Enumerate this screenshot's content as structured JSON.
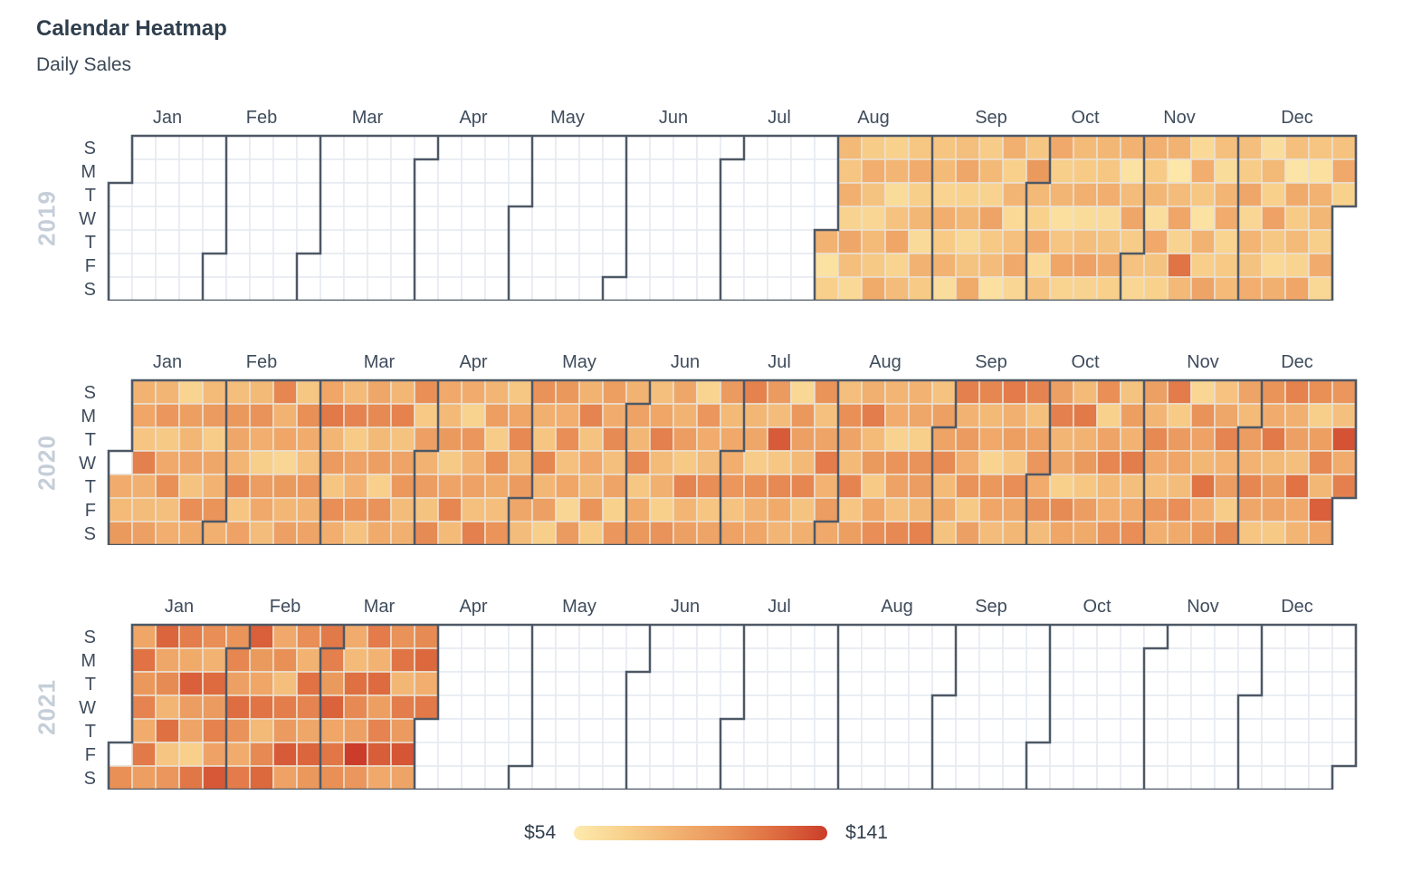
{
  "title": "Calendar Heatmap",
  "subtitle": "Daily Sales",
  "legend": {
    "min_label": "$54",
    "max_label": "$141"
  },
  "colors": {
    "title_text": "#2f3e4d",
    "subtitle_text": "#3a4755",
    "axis_text": "#3f4c5c",
    "year_label": "#c5ced8",
    "border": "#4d5866",
    "grid_empty": "#e6eaf1",
    "grid_filled": "#ebdfd0",
    "missing_cell": "#ffffff",
    "colormap": [
      "#fdeaae",
      "#f8d18c",
      "#f2b271",
      "#ea945a",
      "#de6c40",
      "#cb3d2a"
    ]
  },
  "chart_data": {
    "type": "heatmap",
    "subtype": "calendar",
    "title": "Calendar Heatmap",
    "subtitle": "Daily Sales",
    "value_unit": "$",
    "value_range": [
      54,
      141
    ],
    "legend": {
      "min": "$54",
      "max": "$141",
      "position": "bottom-center"
    },
    "data_start": "2019-08-01",
    "data_end": "2021-03-31",
    "day_labels": [
      "S",
      "M",
      "T",
      "W",
      "T",
      "F",
      "S"
    ],
    "month_labels": [
      "Jan",
      "Feb",
      "Mar",
      "Apr",
      "May",
      "Jun",
      "Jul",
      "Aug",
      "Sep",
      "Oct",
      "Nov",
      "Dec"
    ],
    "years": [
      {
        "year": 2019,
        "months": {
          "Aug": [
            88,
            60,
            72,
            85,
            78,
            90,
            70,
            95,
            82,
            66,
            74,
            91,
            79,
            68,
            84,
            76,
            93,
            71,
            87,
            64,
            80,
            96,
            69,
            83,
            77,
            92,
            73,
            86,
            65,
            89,
            75
          ],
          "Sep": [
            78,
            84,
            69,
            91,
            75,
            88,
            63,
            82,
            95,
            71,
            86,
            67,
            79,
            93,
            74,
            85,
            70,
            97,
            76,
            83,
            61,
            90,
            72,
            87,
            66,
            81,
            94,
            68,
            77,
            103
          ],
          "Oct": [
            85,
            71,
            92,
            66,
            80,
            94,
            73,
            87,
            62,
            78,
            96,
            69,
            84,
            75,
            90,
            64,
            82,
            98,
            70,
            86,
            77,
            91,
            65,
            79,
            93,
            72,
            88,
            60,
            83,
            95,
            74
          ],
          "Nov": [
            80,
            68,
            90,
            75,
            86,
            63,
            94,
            79,
            71,
            88,
            57,
            83,
            96,
            70,
            120,
            85,
            66,
            91,
            77,
            60,
            89,
            73,
            97,
            81,
            64,
            87,
            92,
            69,
            76,
            84
          ],
          "Dec": [
            82,
            74,
            95,
            68,
            87,
            79,
            91,
            63,
            85,
            72,
            98,
            77,
            66,
            90,
            81,
            58,
            93,
            75,
            84,
            69,
            96,
            78,
            61,
            89,
            86,
            73,
            92,
            67,
            80,
            94,
            71
          ]
        }
      },
      {
        "year": 2020,
        "months": {
          "Jan": [
            null,
            92,
            84,
            103,
            88,
            96,
            78,
            115,
            90,
            83,
            99,
            87,
            105,
            76,
            94,
            108,
            82,
            91,
            69,
            100,
            86,
            97,
            79,
            109,
            93,
            84,
            102,
            74,
            95,
            88,
            106
          ],
          "Feb": [
            90,
            82,
            104,
            95,
            87,
            110,
            78,
            98,
            85,
            107,
            91,
            73,
            101,
            94,
            83,
            112,
            88,
            96,
            68,
            103,
            86,
            99,
            77,
            108,
            92,
            81,
            105,
            89,
            97
          ],
          "Mar": [
            96,
            118,
            87,
            102,
            78,
            109,
            91,
            84,
            113,
            75,
            98,
            89,
            106,
            80,
            95,
            111,
            85,
            100,
            72,
            107,
            93,
            86,
            114,
            79,
            97,
            104,
            83,
            90,
            108,
            76,
            99
          ],
          "Apr": [
            88,
            101,
            79,
            110,
            94,
            85,
            103,
            76,
            97,
            112,
            84,
            92,
            70,
            105,
            89,
            98,
            81,
            115,
            87,
            100,
            74,
            108,
            93,
            82,
            106,
            77,
            96,
            111,
            85,
            102
          ],
          "May": [
            95,
            83,
            107,
            90,
            78,
            112,
            86,
            99,
            73,
            104,
            91,
            109,
            81,
            96,
            68,
            102,
            88,
            113,
            79,
            94,
            85,
            106,
            75,
            100,
            92,
            110,
            82,
            97,
            71,
            105,
            89
          ],
          "Jun": [
            98,
            86,
            111,
            77,
            93,
            104,
            82,
            96,
            115,
            84,
            90,
            72,
            107,
            95,
            88,
            101,
            76,
            113,
            87,
            99,
            69,
            105,
            92,
            83,
            109,
            78,
            97,
            102,
            85,
            94
          ],
          "Jul": [
            91,
            105,
            80,
            98,
            114,
            86,
            95,
            74,
            108,
            89,
            96,
            102,
            83,
            130,
            77,
            111,
            93,
            87,
            67,
            104,
            99,
            85,
            112,
            79,
            90,
            106,
            81,
            97,
            116,
            88,
            101
          ],
          "Aug": [
            94,
            82,
            108,
            97,
            85,
            113,
            78,
            100,
            90,
            116,
            84,
            103,
            75,
            96,
            109,
            87,
            92,
            70,
            106,
            98,
            81,
            111,
            89,
            95,
            73,
            107,
            101,
            86,
            114,
            80,
            99
          ],
          "Sep": [
            97,
            110,
            84,
            93,
            79,
            115,
            88,
            102,
            91,
            107,
            76,
            99,
            112,
            85,
            94,
            69,
            104,
            96,
            83,
            117,
            90,
            100,
            78,
            109,
            95,
            86,
            113,
            81,
            98,
            105
          ],
          "Oct": [
            92,
            107,
            83,
            99,
            115,
            87,
            95,
            72,
            110,
            96,
            84,
            118,
            89,
            103,
            77,
            101,
            93,
            108,
            71,
            97,
            112,
            85,
            91,
            105,
            79,
            100,
            88,
            116,
            82,
            94,
            109
          ],
          "Nov": [
            99,
            87,
            111,
            94,
            81,
            105,
            90,
            117,
            75,
            102,
            96,
            83,
            109,
            93,
            68,
            107,
            98,
            86,
            120,
            91,
            104,
            80,
            95,
            113,
            88,
            101,
            74,
            110,
            97,
            84
          ],
          "Dec": [
            101,
            89,
            112,
            95,
            78,
            106,
            92,
            118,
            85,
            103,
            97,
            76,
            114,
            90,
            99,
            82,
            121,
            94,
            87,
            108,
            73,
            100,
            111,
            86,
            128,
            96,
            105,
            81,
            133,
            92,
            115
          ]
        }
      },
      {
        "year": 2021,
        "months": {
          "Jan": [
            null,
            108,
            96,
            121,
            104,
            113,
            92,
            118,
            100,
            126,
            95,
            110,
            87,
            122,
            78,
            105,
            116,
            93,
            128,
            101,
            97,
            72,
            119,
            109,
            89,
            124,
            102,
            114,
            98,
            131,
            106
          ],
          "Feb": [
            112,
            99,
            123,
            107,
            92,
            117,
            128,
            103,
            96,
            120,
            85,
            111,
            125,
            94,
            108,
            82,
            116,
            102,
            130,
            98,
            109,
            88,
            121,
            113,
            95,
            126,
            104,
            118
          ],
          "Mar": [
            115,
            103,
            127,
            96,
            119,
            108,
            92,
            84,
            122,
            111,
            99,
            141,
            105,
            117,
            88,
            124,
            100,
            113,
            129,
            94,
            107,
            120,
            86,
            116,
            102,
            132,
            97,
            110,
            125,
            91,
            118
          ]
        }
      }
    ]
  }
}
